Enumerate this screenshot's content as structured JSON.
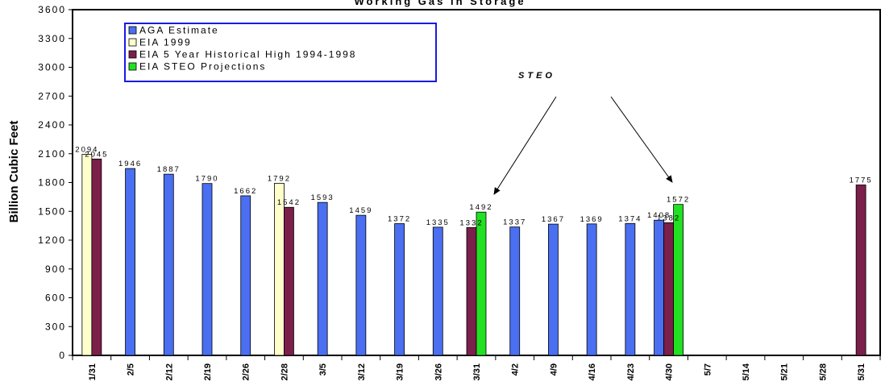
{
  "chart_data": {
    "type": "bar",
    "title": "Working Gas in Storage",
    "ylabel": "Billion Cubic Feet",
    "xlabel": "",
    "ylim": [
      0,
      3600
    ],
    "yticks": [
      0,
      300,
      600,
      900,
      1200,
      1500,
      1800,
      2100,
      2400,
      2700,
      3000,
      3300,
      3600
    ],
    "ytick_labels": [
      "0",
      "300",
      "600",
      "900",
      "1200",
      "1500",
      "1800",
      "2100",
      "2400",
      "2700",
      "3000",
      "3300",
      "3600"
    ],
    "categories": [
      "1/31",
      "2/5",
      "2/12",
      "2/19",
      "2/26",
      "2/28",
      "3/5",
      "3/12",
      "3/19",
      "3/26",
      "3/31",
      "4/2",
      "4/9",
      "4/16",
      "4/23",
      "4/30",
      "5/7",
      "5/14",
      "5/21",
      "5/28",
      "5/31"
    ],
    "series": [
      {
        "name": "AGA Estimate",
        "color": "#4a6ff0",
        "values": [
          null,
          1946,
          1887,
          1790,
          1662,
          null,
          1593,
          1459,
          1372,
          1335,
          null,
          1337,
          1367,
          1369,
          1374,
          1408,
          null,
          null,
          null,
          null,
          null
        ]
      },
      {
        "name": "EIA 1999",
        "color": "#ffffcc",
        "values": [
          2094,
          null,
          null,
          null,
          null,
          1792,
          null,
          null,
          null,
          null,
          null,
          null,
          null,
          null,
          null,
          null,
          null,
          null,
          null,
          null,
          null
        ]
      },
      {
        "name": "EIA 5 Year Historical High 1994-1998",
        "color": "#7b1f4b",
        "values": [
          2045,
          null,
          null,
          null,
          null,
          1542,
          null,
          null,
          null,
          null,
          1332,
          null,
          null,
          null,
          null,
          1382,
          null,
          null,
          null,
          null,
          1775
        ]
      },
      {
        "name": "EIA STEO Projections",
        "color": "#22e022",
        "values": [
          null,
          null,
          null,
          null,
          null,
          null,
          null,
          null,
          null,
          null,
          1492,
          null,
          null,
          null,
          null,
          1572,
          null,
          null,
          null,
          null,
          null
        ]
      }
    ],
    "legend_position": "top-left",
    "grid": false,
    "annotations": [
      {
        "text": "STEO",
        "points_to": [
          "3/31",
          "4/30"
        ]
      }
    ]
  }
}
